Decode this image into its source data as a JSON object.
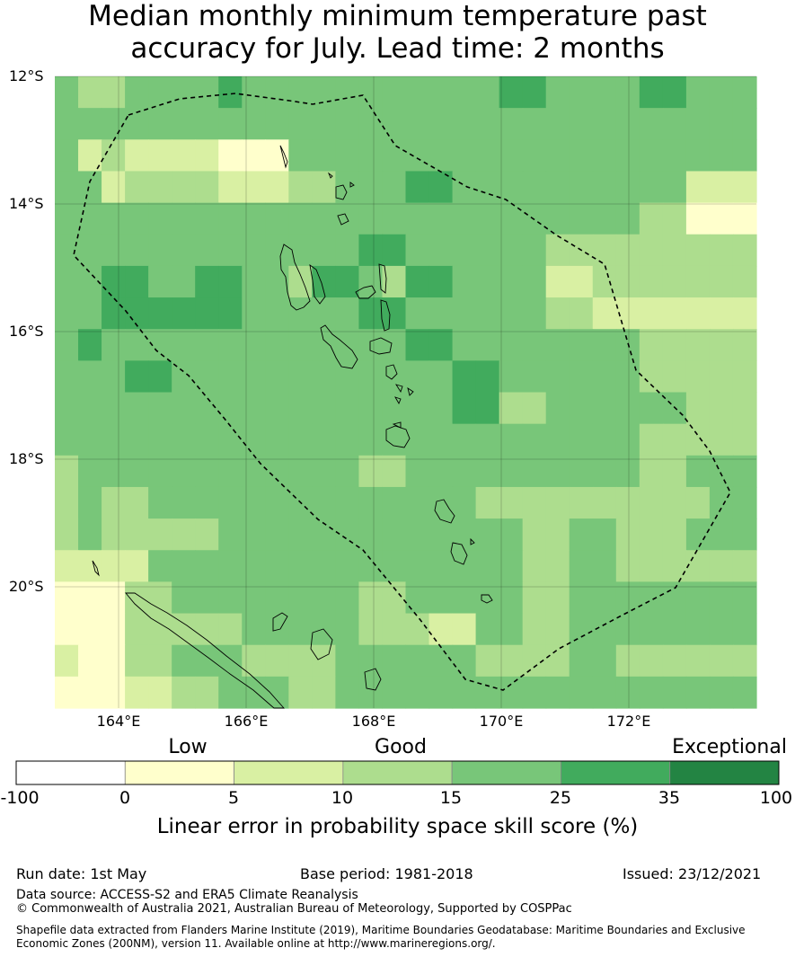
{
  "title": {
    "line1": "Median monthly minimum temperature past",
    "line2": "accuracy for July. Lead time: 2 months"
  },
  "map": {
    "lat_labels": [
      "12°S",
      "14°S",
      "16°S",
      "18°S",
      "20°S"
    ],
    "lon_labels": [
      "164°E",
      "166°E",
      "168°E",
      "170°E",
      "172°E"
    ],
    "extent": {
      "lon_min": 163.0,
      "lon_max": 174.0,
      "lat_min": -21.9,
      "lat_max": -12.0
    },
    "grid_lon_step": 0.83,
    "grid_lat_step": 0.555,
    "class_grid": [
      [
        4,
        3,
        3,
        4,
        4,
        4,
        4,
        5,
        4,
        4,
        4,
        4,
        4,
        4,
        4,
        4,
        4,
        4,
        4,
        5,
        5,
        4,
        4,
        4,
        4,
        5,
        5,
        4,
        4,
        4
      ],
      [
        4,
        4,
        4,
        4,
        4,
        4,
        4,
        4,
        4,
        4,
        4,
        4,
        4,
        4,
        4,
        4,
        4,
        4,
        4,
        4,
        4,
        4,
        4,
        4,
        4,
        4,
        4,
        4,
        4,
        4
      ],
      [
        4,
        2,
        3,
        2,
        2,
        2,
        2,
        1,
        1,
        1,
        4,
        4,
        4,
        4,
        4,
        4,
        4,
        4,
        4,
        4,
        4,
        4,
        4,
        4,
        4,
        4,
        4,
        4,
        4,
        4
      ],
      [
        4,
        4,
        2,
        3,
        3,
        3,
        3,
        2,
        2,
        2,
        3,
        3,
        4,
        4,
        4,
        5,
        5,
        4,
        4,
        4,
        4,
        4,
        4,
        4,
        4,
        4,
        4,
        2,
        2,
        2
      ],
      [
        4,
        4,
        4,
        4,
        4,
        4,
        4,
        4,
        4,
        4,
        4,
        4,
        4,
        4,
        4,
        4,
        4,
        4,
        4,
        4,
        4,
        4,
        4,
        4,
        4,
        3,
        3,
        1,
        1,
        1
      ],
      [
        4,
        4,
        4,
        4,
        4,
        4,
        4,
        4,
        4,
        4,
        4,
        4,
        4,
        5,
        5,
        4,
        4,
        4,
        4,
        4,
        4,
        3,
        3,
        3,
        3,
        3,
        3,
        3,
        3,
        3
      ],
      [
        4,
        4,
        5,
        5,
        4,
        4,
        5,
        5,
        4,
        4,
        3,
        5,
        5,
        4,
        3,
        5,
        5,
        4,
        4,
        4,
        4,
        2,
        2,
        3,
        3,
        3,
        3,
        3,
        3,
        3
      ],
      [
        4,
        4,
        5,
        5,
        5,
        5,
        5,
        5,
        4,
        4,
        4,
        4,
        4,
        5,
        5,
        4,
        4,
        4,
        4,
        4,
        4,
        3,
        3,
        2,
        2,
        2,
        2,
        2,
        2,
        2
      ],
      [
        4,
        5,
        4,
        4,
        4,
        4,
        4,
        4,
        4,
        4,
        4,
        4,
        4,
        4,
        4,
        5,
        5,
        4,
        4,
        4,
        4,
        4,
        4,
        4,
        4,
        3,
        3,
        3,
        3,
        3
      ],
      [
        4,
        4,
        4,
        5,
        5,
        4,
        4,
        4,
        4,
        4,
        4,
        4,
        4,
        4,
        4,
        4,
        4,
        5,
        5,
        4,
        4,
        4,
        4,
        4,
        4,
        3,
        3,
        3,
        3,
        3
      ],
      [
        4,
        4,
        4,
        4,
        4,
        4,
        4,
        4,
        4,
        4,
        4,
        4,
        4,
        4,
        4,
        4,
        4,
        5,
        5,
        3,
        3,
        4,
        4,
        4,
        4,
        4,
        4,
        3,
        3,
        3
      ],
      [
        4,
        4,
        4,
        4,
        4,
        4,
        4,
        4,
        4,
        4,
        4,
        4,
        4,
        4,
        4,
        4,
        4,
        4,
        4,
        4,
        4,
        4,
        4,
        4,
        4,
        3,
        3,
        3,
        3,
        3
      ],
      [
        3,
        4,
        4,
        4,
        4,
        4,
        4,
        4,
        4,
        4,
        4,
        4,
        4,
        3,
        3,
        4,
        4,
        4,
        4,
        4,
        4,
        4,
        4,
        4,
        4,
        3,
        3,
        4,
        4,
        4
      ],
      [
        3,
        4,
        3,
        3,
        4,
        4,
        4,
        4,
        4,
        4,
        4,
        4,
        4,
        4,
        4,
        4,
        4,
        4,
        3,
        3,
        3,
        3,
        3,
        3,
        3,
        3,
        3,
        3,
        4,
        4
      ],
      [
        3,
        4,
        3,
        3,
        3,
        3,
        3,
        4,
        4,
        4,
        4,
        4,
        4,
        4,
        4,
        4,
        4,
        4,
        4,
        4,
        3,
        3,
        4,
        4,
        3,
        3,
        3,
        4,
        4,
        4
      ],
      [
        2,
        2,
        2,
        2,
        4,
        4,
        4,
        4,
        4,
        4,
        4,
        4,
        4,
        4,
        4,
        4,
        4,
        4,
        4,
        4,
        3,
        3,
        4,
        4,
        3,
        3,
        3,
        3,
        3,
        3
      ],
      [
        1,
        1,
        1,
        3,
        3,
        4,
        4,
        4,
        4,
        4,
        4,
        4,
        4,
        3,
        3,
        4,
        4,
        4,
        4,
        4,
        3,
        3,
        4,
        4,
        4,
        4,
        4,
        4,
        4,
        4
      ],
      [
        1,
        1,
        1,
        3,
        3,
        3,
        3,
        3,
        4,
        4,
        4,
        4,
        4,
        3,
        3,
        3,
        2,
        2,
        4,
        4,
        3,
        3,
        4,
        4,
        4,
        4,
        4,
        4,
        4,
        4
      ],
      [
        2,
        1,
        1,
        3,
        3,
        4,
        4,
        4,
        3,
        3,
        3,
        3,
        4,
        4,
        4,
        4,
        4,
        4,
        3,
        3,
        3,
        3,
        4,
        4,
        3,
        3,
        3,
        3,
        3,
        3
      ],
      [
        1,
        1,
        1,
        2,
        2,
        3,
        3,
        4,
        4,
        4,
        3,
        3,
        4,
        4,
        4,
        4,
        4,
        4,
        4,
        4,
        4,
        4,
        4,
        4,
        4,
        4,
        4,
        4,
        4,
        4
      ]
    ]
  },
  "categories": {
    "low": "Low",
    "good": "Good",
    "exceptional": "Exceptional"
  },
  "colorbar": {
    "ticks": [
      "-100",
      "0",
      "5",
      "10",
      "15",
      "25",
      "35",
      "100"
    ],
    "colors": [
      "#ffffff",
      "#ffffcc",
      "#d9f0a3",
      "#addd8e",
      "#78c679",
      "#41ab5d",
      "#238443"
    ],
    "label": "Linear error in probability space skill score (%)"
  },
  "footer": {
    "run_date": "Run date: 1st May",
    "base_period": "Base period: 1981-2018",
    "issued": "Issued: 23/12/2021",
    "data_source": "Data source: ACCESS-S2 and ERA5 Climate Reanalysis",
    "copyright": "© Commonwealth of Australia 2021, Australian Bureau of Meteorology, Supported by COSPPac",
    "shapefile_line1": "Shapefile data extracted from Flanders Marine Institute (2019), Maritime Boundaries Geodatabase: Maritime Boundaries and Exclusive",
    "shapefile_line2": "Economic Zones (200NM), version 11. Available online at http://www.marineregions.org/."
  }
}
